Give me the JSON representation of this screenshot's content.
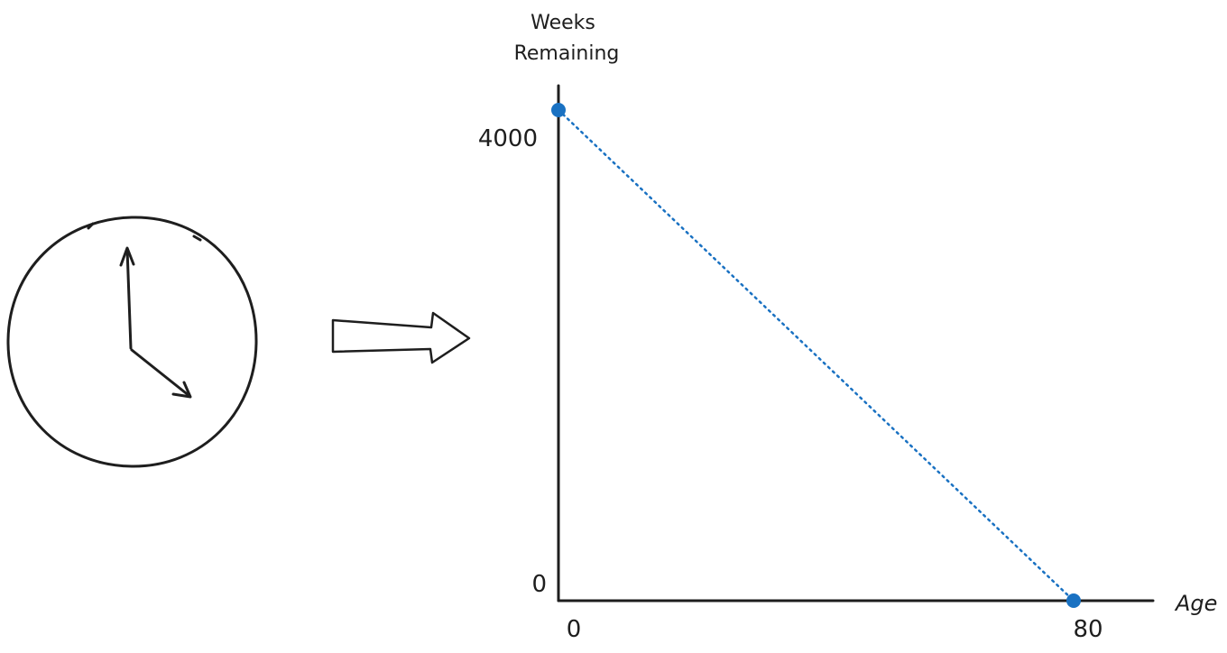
{
  "icons": {
    "clock": "clock-icon",
    "arrow": "right-arrow-icon"
  },
  "colors": {
    "ink": "#1e1e1e",
    "accent": "#1971c2"
  },
  "chart_data": {
    "type": "line",
    "xlabel": "Age",
    "ylabel_line1": "Weeks",
    "ylabel_line2": "Remaining",
    "x_ticks": [
      "0",
      "80"
    ],
    "y_ticks": [
      "4000",
      "0"
    ],
    "x": [
      0,
      80
    ],
    "values": [
      4160,
      0
    ],
    "xlim": [
      0,
      80
    ],
    "ylim": [
      0,
      4160
    ],
    "line_style": "dotted",
    "grid": false
  }
}
